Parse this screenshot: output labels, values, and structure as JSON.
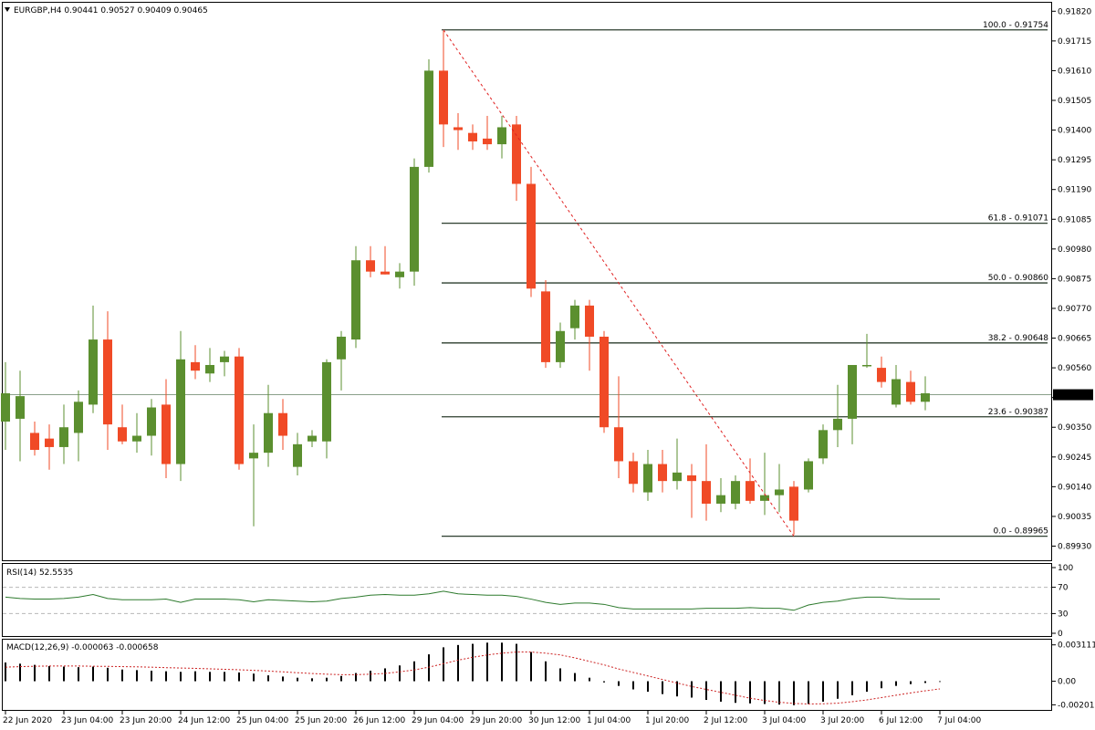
{
  "header": {
    "menu_icon": "triangle-down-icon",
    "symbol_info": "EURGBP,H4  0.90441 0.90527 0.90409 0.90465"
  },
  "colors": {
    "bull": "#5b8f2f",
    "bear": "#f04a26",
    "fib_line": "#2c3e2e",
    "trend": "#e02020",
    "rsi_line": "#2d7a2d",
    "macd_hist": "#000000",
    "macd_signal": "#cc2222",
    "price_line": "#8aa08a"
  },
  "chart_data": [
    {
      "type": "candlestick",
      "title": "EURGBP,H4",
      "ylim": [
        0.8988,
        0.9185
      ],
      "yticks": [
        "0.91820",
        "0.91715",
        "0.91610",
        "0.91505",
        "0.91400",
        "0.91295",
        "0.91190",
        "0.91085",
        "0.90980",
        "0.90875",
        "0.90770",
        "0.90665",
        "0.90560",
        "0.90455",
        "0.90350",
        "0.90245",
        "0.90140",
        "0.90035",
        "0.89930"
      ],
      "current_price": "0.90465",
      "candles": [
        {
          "o": 0.9037,
          "h": 0.9058,
          "l": 0.9027,
          "c": 0.9047
        },
        {
          "o": 0.9038,
          "h": 0.9055,
          "l": 0.9023,
          "c": 0.9046
        },
        {
          "o": 0.9033,
          "h": 0.9037,
          "l": 0.9025,
          "c": 0.9027
        },
        {
          "o": 0.9031,
          "h": 0.9036,
          "l": 0.902,
          "c": 0.9028
        },
        {
          "o": 0.9028,
          "h": 0.9043,
          "l": 0.9022,
          "c": 0.9035
        },
        {
          "o": 0.9033,
          "h": 0.9048,
          "l": 0.9023,
          "c": 0.9044
        },
        {
          "o": 0.9043,
          "h": 0.9078,
          "l": 0.904,
          "c": 0.9066
        },
        {
          "o": 0.9066,
          "h": 0.9076,
          "l": 0.9027,
          "c": 0.9036
        },
        {
          "o": 0.9035,
          "h": 0.9043,
          "l": 0.9029,
          "c": 0.903
        },
        {
          "o": 0.903,
          "h": 0.904,
          "l": 0.9026,
          "c": 0.9032
        },
        {
          "o": 0.9032,
          "h": 0.9045,
          "l": 0.9025,
          "c": 0.9042
        },
        {
          "o": 0.9043,
          "h": 0.9052,
          "l": 0.9017,
          "c": 0.9022
        },
        {
          "o": 0.9022,
          "h": 0.9069,
          "l": 0.9016,
          "c": 0.9059
        },
        {
          "o": 0.9058,
          "h": 0.9064,
          "l": 0.9052,
          "c": 0.9055
        },
        {
          "o": 0.9054,
          "h": 0.9063,
          "l": 0.9051,
          "c": 0.9057
        },
        {
          "o": 0.9058,
          "h": 0.9062,
          "l": 0.9053,
          "c": 0.906
        },
        {
          "o": 0.906,
          "h": 0.9063,
          "l": 0.902,
          "c": 0.9022
        },
        {
          "o": 0.9024,
          "h": 0.9036,
          "l": 0.9,
          "c": 0.9026
        },
        {
          "o": 0.9026,
          "h": 0.905,
          "l": 0.9021,
          "c": 0.904
        },
        {
          "o": 0.904,
          "h": 0.9045,
          "l": 0.9027,
          "c": 0.9032
        },
        {
          "o": 0.9021,
          "h": 0.9033,
          "l": 0.9018,
          "c": 0.9029
        },
        {
          "o": 0.903,
          "h": 0.9034,
          "l": 0.9028,
          "c": 0.9032
        },
        {
          "o": 0.903,
          "h": 0.9059,
          "l": 0.9024,
          "c": 0.9058
        },
        {
          "o": 0.9059,
          "h": 0.9069,
          "l": 0.9048,
          "c": 0.9067
        },
        {
          "o": 0.9066,
          "h": 0.9099,
          "l": 0.9063,
          "c": 0.9094
        },
        {
          "o": 0.9094,
          "h": 0.9099,
          "l": 0.9088,
          "c": 0.909
        },
        {
          "o": 0.909,
          "h": 0.9099,
          "l": 0.9089,
          "c": 0.9089
        },
        {
          "o": 0.9088,
          "h": 0.9093,
          "l": 0.9084,
          "c": 0.909
        },
        {
          "o": 0.909,
          "h": 0.913,
          "l": 0.9085,
          "c": 0.9127
        },
        {
          "o": 0.9127,
          "h": 0.9165,
          "l": 0.9125,
          "c": 0.9161
        },
        {
          "o": 0.9161,
          "h": 0.9175,
          "l": 0.9134,
          "c": 0.9142
        },
        {
          "o": 0.9141,
          "h": 0.9146,
          "l": 0.9133,
          "c": 0.914
        },
        {
          "o": 0.9139,
          "h": 0.9142,
          "l": 0.9133,
          "c": 0.9136
        },
        {
          "o": 0.9137,
          "h": 0.9145,
          "l": 0.9133,
          "c": 0.9135
        },
        {
          "o": 0.9135,
          "h": 0.9145,
          "l": 0.913,
          "c": 0.9141
        },
        {
          "o": 0.9142,
          "h": 0.9145,
          "l": 0.9115,
          "c": 0.9121
        },
        {
          "o": 0.9121,
          "h": 0.9127,
          "l": 0.9081,
          "c": 0.9084
        },
        {
          "o": 0.9083,
          "h": 0.9087,
          "l": 0.9056,
          "c": 0.9058
        },
        {
          "o": 0.9058,
          "h": 0.9072,
          "l": 0.9056,
          "c": 0.9069
        },
        {
          "o": 0.907,
          "h": 0.908,
          "l": 0.9066,
          "c": 0.9078
        },
        {
          "o": 0.9078,
          "h": 0.908,
          "l": 0.9055,
          "c": 0.9067
        },
        {
          "o": 0.9067,
          "h": 0.9069,
          "l": 0.9033,
          "c": 0.9035
        },
        {
          "o": 0.9035,
          "h": 0.9053,
          "l": 0.9017,
          "c": 0.9023
        },
        {
          "o": 0.9023,
          "h": 0.9026,
          "l": 0.9012,
          "c": 0.9015
        },
        {
          "o": 0.9012,
          "h": 0.9027,
          "l": 0.9009,
          "c": 0.9022
        },
        {
          "o": 0.9022,
          "h": 0.9027,
          "l": 0.9012,
          "c": 0.9016
        },
        {
          "o": 0.9016,
          "h": 0.9031,
          "l": 0.9013,
          "c": 0.9019
        },
        {
          "o": 0.9018,
          "h": 0.9022,
          "l": 0.9003,
          "c": 0.9016
        },
        {
          "o": 0.9016,
          "h": 0.9029,
          "l": 0.9002,
          "c": 0.9008
        },
        {
          "o": 0.9008,
          "h": 0.9017,
          "l": 0.9005,
          "c": 0.9011
        },
        {
          "o": 0.9008,
          "h": 0.9018,
          "l": 0.9006,
          "c": 0.9016
        },
        {
          "o": 0.9016,
          "h": 0.9024,
          "l": 0.9008,
          "c": 0.9009
        },
        {
          "o": 0.9009,
          "h": 0.9026,
          "l": 0.9004,
          "c": 0.9011
        },
        {
          "o": 0.9011,
          "h": 0.9022,
          "l": 0.9005,
          "c": 0.9013
        },
        {
          "o": 0.9014,
          "h": 0.9016,
          "l": 0.8997,
          "c": 0.9002
        },
        {
          "o": 0.9013,
          "h": 0.9024,
          "l": 0.9012,
          "c": 0.9023
        },
        {
          "o": 0.9024,
          "h": 0.9036,
          "l": 0.9022,
          "c": 0.9034
        },
        {
          "o": 0.9034,
          "h": 0.905,
          "l": 0.9028,
          "c": 0.9038
        },
        {
          "o": 0.9038,
          "h": 0.9057,
          "l": 0.9029,
          "c": 0.9057
        },
        {
          "o": 0.9057,
          "h": 0.9068,
          "l": 0.9056,
          "c": 0.9057
        },
        {
          "o": 0.9056,
          "h": 0.906,
          "l": 0.9049,
          "c": 0.9051
        },
        {
          "o": 0.9043,
          "h": 0.9057,
          "l": 0.9042,
          "c": 0.9052
        },
        {
          "o": 0.9051,
          "h": 0.9055,
          "l": 0.9043,
          "c": 0.9044
        },
        {
          "o": 0.9044,
          "h": 0.9053,
          "l": 0.9041,
          "c": 0.9047
        }
      ],
      "fib_levels": [
        {
          "label": "100.0 - 0.91754",
          "value": 0.91754
        },
        {
          "label": "61.8 - 0.91071",
          "value": 0.91071
        },
        {
          "label": "50.0 - 0.90860",
          "value": 0.9086
        },
        {
          "label": "38.2 - 0.90648",
          "value": 0.90648
        },
        {
          "label": "23.6 - 0.90387",
          "value": 0.90387
        },
        {
          "label": "0.0 - 0.89965",
          "value": 0.89965
        }
      ],
      "fib_start_candle": 30,
      "trendline": {
        "from": {
          "candle": 30,
          "price": 0.91754
        },
        "to": {
          "candle": 54,
          "price": 0.89965
        }
      },
      "x_tick_labels": [
        {
          "candle": 0,
          "label": "22 Jun 2020"
        },
        {
          "candle": 4,
          "label": "23 Jun 04:00"
        },
        {
          "candle": 8,
          "label": "23 Jun 20:00"
        },
        {
          "candle": 12,
          "label": "24 Jun 12:00"
        },
        {
          "candle": 16,
          "label": "25 Jun 04:00"
        },
        {
          "candle": 20,
          "label": "25 Jun 20:00"
        },
        {
          "candle": 24,
          "label": "26 Jun 12:00"
        },
        {
          "candle": 28,
          "label": "29 Jun 04:00"
        },
        {
          "candle": 32,
          "label": "29 Jun 20:00"
        },
        {
          "candle": 36,
          "label": "30 Jun 12:00"
        },
        {
          "candle": 40,
          "label": "1 Jul 04:00"
        },
        {
          "candle": 44,
          "label": "1 Jul 20:00"
        },
        {
          "candle": 48,
          "label": "2 Jul 12:00"
        },
        {
          "candle": 52,
          "label": "3 Jul 04:00"
        },
        {
          "candle": 56,
          "label": "3 Jul 20:00"
        },
        {
          "candle": 60,
          "label": "6 Jul 12:00"
        },
        {
          "candle": 64,
          "label": "7 Jul 04:00"
        }
      ]
    },
    {
      "type": "line",
      "title": "RSI(14) 52.5535",
      "ylim": [
        0,
        100
      ],
      "yticks": [
        "100",
        "70",
        "30",
        "0"
      ],
      "levels": [
        70,
        30
      ],
      "values": [
        55,
        53,
        52,
        52,
        53,
        55,
        59,
        53,
        51,
        51,
        51,
        52,
        47,
        52,
        52,
        52,
        51,
        48,
        51,
        50,
        49,
        48,
        49,
        53,
        55,
        58,
        59,
        58,
        58,
        60,
        64,
        60,
        59,
        58,
        58,
        56,
        52,
        47,
        44,
        46,
        46,
        44,
        39,
        37,
        37,
        37,
        37,
        37,
        38,
        38,
        38,
        39,
        38,
        38,
        35,
        43,
        47,
        49,
        53,
        55,
        55,
        53,
        52,
        52,
        52
      ]
    },
    {
      "type": "bar",
      "title": "MACD(12,26,9) -0.000063 -0.000658",
      "ylim": [
        -0.0023,
        0.0034
      ],
      "yticks": [
        "0.003111",
        "0.00",
        "-0.002018"
      ],
      "histogram": [
        0.0016,
        0.0015,
        0.0014,
        0.0013,
        0.00125,
        0.0012,
        0.00125,
        0.00115,
        0.001,
        0.00095,
        0.0009,
        0.00085,
        0.0008,
        0.00085,
        0.0008,
        0.0008,
        0.00075,
        0.00065,
        0.0005,
        0.0004,
        0.0003,
        0.00025,
        0.0003,
        0.00045,
        0.0007,
        0.0009,
        0.0011,
        0.00135,
        0.0017,
        0.0023,
        0.0029,
        0.0031,
        0.0032,
        0.0033,
        0.0033,
        0.0032,
        0.0025,
        0.0017,
        0.0011,
        0.0007,
        0.0003,
        -0.0001,
        -0.0004,
        -0.0007,
        -0.0009,
        -0.0011,
        -0.0013,
        -0.0014,
        -0.0016,
        -0.00175,
        -0.00185,
        -0.0019,
        -0.00195,
        -0.002,
        -0.00205,
        -0.00195,
        -0.00175,
        -0.0015,
        -0.0012,
        -0.0009,
        -0.0006,
        -0.0004,
        -0.00025,
        -0.00015,
        -6e-05
      ],
      "signal": [
        0.0012,
        0.00125,
        0.00128,
        0.0013,
        0.0013,
        0.0013,
        0.00128,
        0.00127,
        0.00125,
        0.00123,
        0.0012,
        0.00116,
        0.00113,
        0.0011,
        0.00106,
        0.00102,
        0.00098,
        0.00093,
        0.00087,
        0.0008,
        0.00073,
        0.00066,
        0.0006,
        0.00056,
        0.00056,
        0.0006,
        0.00067,
        0.0008,
        0.00097,
        0.0012,
        0.0015,
        0.0018,
        0.00205,
        0.00225,
        0.0024,
        0.0025,
        0.0025,
        0.0024,
        0.00225,
        0.002,
        0.0017,
        0.0014,
        0.00105,
        0.00075,
        0.00045,
        0.00015,
        -0.00015,
        -0.00045,
        -0.0007,
        -0.00095,
        -0.0012,
        -0.00145,
        -0.00165,
        -0.0018,
        -0.0019,
        -0.00195,
        -0.00193,
        -0.00188,
        -0.00175,
        -0.0016,
        -0.0014,
        -0.0012,
        -0.001,
        -0.00082,
        -0.00066
      ]
    }
  ]
}
